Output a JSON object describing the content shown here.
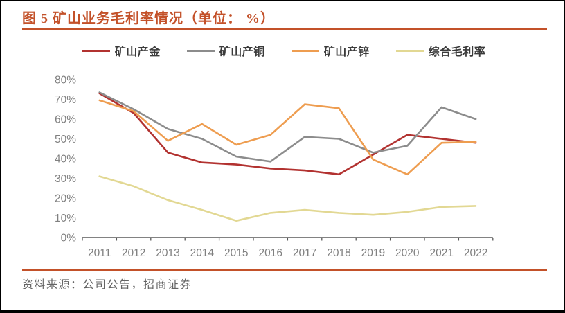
{
  "title": "图 5 矿山业务毛利率情况（单位： %）",
  "footer": {
    "source": "资料来源：公司公告，招商证券"
  },
  "colors": {
    "accent_rule": "#C35129",
    "axis_line": "#595959",
    "tick_label": "#808080",
    "frame_border": "#000000",
    "background": "#FFFFFF"
  },
  "chart_data": {
    "type": "line",
    "x": [
      2011,
      2012,
      2013,
      2014,
      2015,
      2016,
      2017,
      2018,
      2019,
      2020,
      2021,
      2022
    ],
    "series": [
      {
        "name": "矿山产金",
        "color": "#B23230",
        "values": [
          73,
          63,
          43,
          38,
          37,
          35,
          34,
          32,
          42,
          52,
          50,
          48
        ]
      },
      {
        "name": "矿山产铜",
        "color": "#8C8C8C",
        "values": [
          73.5,
          65,
          55,
          50,
          41,
          38.5,
          51,
          50,
          43,
          46.5,
          66,
          60
        ]
      },
      {
        "name": "矿山产锌",
        "color": "#EE9D50",
        "values": [
          69.5,
          64,
          49,
          57.5,
          47,
          52,
          67.5,
          65.5,
          39.5,
          32,
          48,
          48.5
        ]
      },
      {
        "name": "综合毛利率",
        "color": "#E2D893",
        "values": [
          31,
          26,
          19,
          14,
          8.5,
          12.5,
          14,
          12.5,
          11.5,
          13,
          15.5,
          16
        ]
      }
    ],
    "ylim": [
      0,
      80
    ],
    "ytick_step": 10,
    "ytick_format": "percent",
    "grid": false,
    "legend_position": "top"
  }
}
